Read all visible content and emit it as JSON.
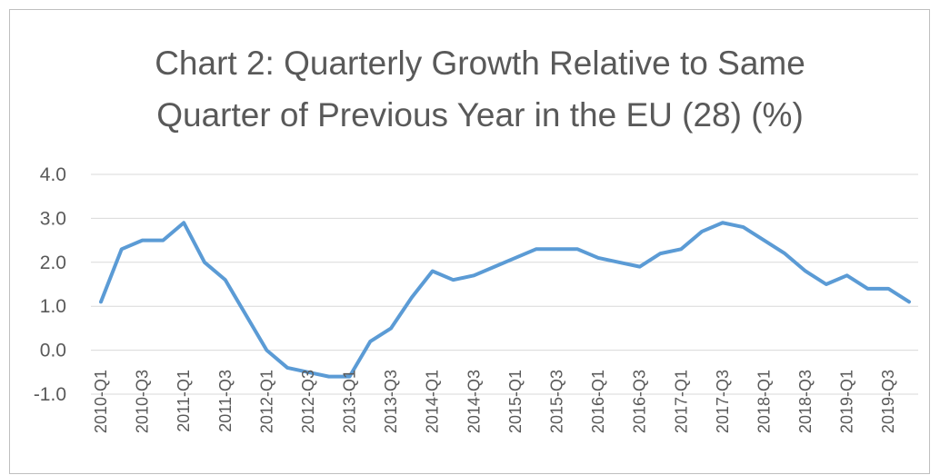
{
  "chart_data": {
    "type": "line",
    "title": [
      "Chart 2: Quarterly Growth Relative to Same",
      "Quarter of Previous Year in the EU (28) (%)"
    ],
    "ylim": [
      -1.0,
      4.0
    ],
    "yticks": [
      "4.0",
      "3.0",
      "2.0",
      "1.0",
      "0.0",
      "-1.0"
    ],
    "ytick_values": [
      4,
      3,
      2,
      1,
      0,
      -1
    ],
    "grid": true,
    "legend": "none",
    "categories": [
      "2010-Q1",
      "2010-Q2",
      "2010-Q3",
      "2010-Q4",
      "2011-Q1",
      "2011-Q2",
      "2011-Q3",
      "2011-Q4",
      "2012-Q1",
      "2012-Q2",
      "2012-Q3",
      "2012-Q4",
      "2013-Q1",
      "2013-Q2",
      "2013-Q3",
      "2013-Q4",
      "2014-Q1",
      "2014-Q2",
      "2014-Q3",
      "2014-Q4",
      "2015-Q1",
      "2015-Q2",
      "2015-Q3",
      "2015-Q4",
      "2016-Q1",
      "2016-Q2",
      "2016-Q3",
      "2016-Q4",
      "2017-Q1",
      "2017-Q2",
      "2017-Q3",
      "2017-Q4",
      "2018-Q1",
      "2018-Q2",
      "2018-Q3",
      "2018-Q4",
      "2019-Q1",
      "2019-Q2",
      "2019-Q3",
      "2019-Q4"
    ],
    "xtick_labels": [
      "2010-Q1",
      "2010-Q3",
      "2011-Q1",
      "2011-Q3",
      "2012-Q1",
      "2012-Q3",
      "2013-Q1",
      "2013-Q3",
      "2014-Q1",
      "2014-Q3",
      "2015-Q1",
      "2015-Q3",
      "2016-Q1",
      "2016-Q3",
      "2017-Q1",
      "2017-Q3",
      "2018-Q1",
      "2018-Q3",
      "2019-Q1",
      "2019-Q3"
    ],
    "series": [
      {
        "color": "#5b9bd5",
        "values": [
          1.1,
          2.3,
          2.5,
          2.5,
          2.9,
          2.0,
          1.6,
          0.8,
          0.0,
          -0.4,
          -0.5,
          -0.6,
          -0.6,
          0.2,
          0.5,
          1.2,
          1.8,
          1.6,
          1.7,
          1.9,
          2.1,
          2.3,
          2.3,
          2.3,
          2.1,
          2.0,
          1.9,
          2.2,
          2.3,
          2.7,
          2.9,
          2.8,
          2.5,
          2.2,
          1.8,
          1.5,
          1.7,
          1.4,
          1.4,
          1.1
        ]
      }
    ]
  }
}
